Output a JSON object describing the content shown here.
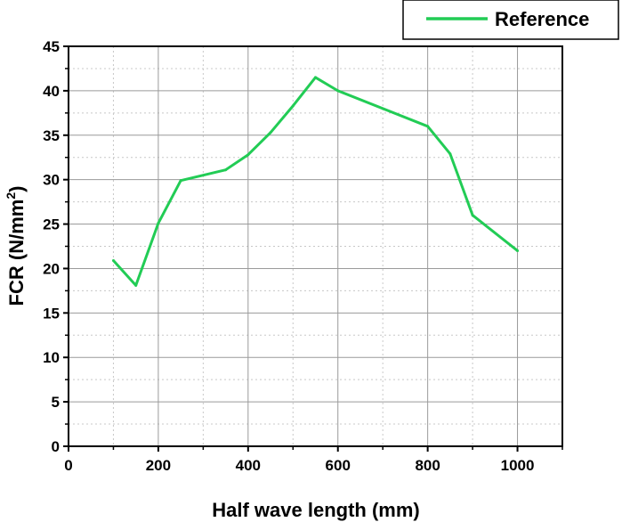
{
  "chart_data": {
    "type": "line",
    "xlabel": "Half wave length (mm)",
    "ylabel_main": "FCR (N/mm",
    "ylabel_sup": "2",
    "ylabel_close": ")",
    "xlim": [
      0,
      1100
    ],
    "ylim": [
      0,
      45
    ],
    "xticks": [
      0,
      200,
      400,
      600,
      800,
      1000
    ],
    "yticks": [
      0,
      5,
      10,
      15,
      20,
      25,
      30,
      35,
      40,
      45
    ],
    "grid": true,
    "legend_position": "top-right",
    "series": [
      {
        "name": "Reference",
        "color": "#22cc55",
        "x": [
          100,
          150,
          200,
          250,
          350,
          400,
          450,
          500,
          550,
          600,
          800,
          850,
          900,
          1000
        ],
        "y": [
          20.9,
          18.1,
          25.1,
          29.9,
          31.1,
          32.8,
          35.3,
          38.3,
          41.5,
          40.0,
          36.0,
          32.9,
          26.0,
          22.0
        ]
      }
    ]
  }
}
